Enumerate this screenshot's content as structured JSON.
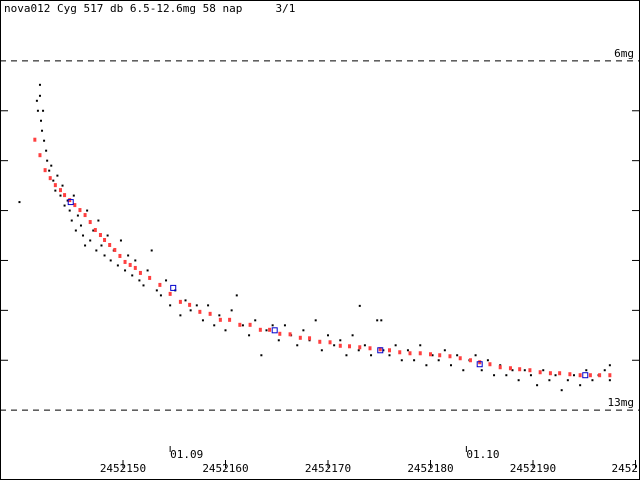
{
  "chart_data": {
    "type": "scatter",
    "title": "nova012 Cyg 517 db 6.5-12.6mg 58 nap     3/1",
    "y_inverted": true,
    "xlim": [
      2452138.0,
      2452200.44
    ],
    "ylim": [
      4.78,
      14.4
    ],
    "xticks": [
      2452150,
      2452160,
      2452170,
      2452180,
      2452190,
      {
        "value": 2452200,
        "label": "2452"
      }
    ],
    "yticks": [
      {
        "value": 6,
        "label": "6mg"
      },
      {
        "value": 13,
        "label": "13mg"
      }
    ],
    "yticks_minor": [
      7,
      8,
      9,
      10,
      11,
      12
    ],
    "date_marks": [
      {
        "value": 2452154.6,
        "label": "01.09"
      },
      {
        "value": 2452183.5,
        "label": "01.10"
      }
    ],
    "series": [
      {
        "marker": "dot",
        "color": "#000000",
        "x": [
          2452139.9,
          2452141.6,
          2452141.7,
          2452141.9,
          2452141.9,
          2452142.0,
          2452142.1,
          2452142.2,
          2452142.3,
          2452142.5,
          2452142.6,
          2452142.8,
          2452143.0,
          2452143.2,
          2452143.4,
          2452143.6,
          2452143.9,
          2452144.1,
          2452144.3,
          2452144.6,
          2452144.8,
          2452145.0,
          2452145.2,
          2452145.4,
          2452145.6,
          2452145.9,
          2452146.1,
          2452146.3,
          2452146.5,
          2452146.8,
          2452147.1,
          2452147.4,
          2452147.6,
          2452147.9,
          2452148.2,
          2452148.5,
          2452148.8,
          2452149.1,
          2452149.5,
          2452149.8,
          2452150.2,
          2452150.5,
          2452150.9,
          2452151.2,
          2452151.6,
          2452152.0,
          2452152.4,
          2452152.8,
          2452153.3,
          2452153.7,
          2452154.2,
          2452154.6,
          2452155.1,
          2452155.6,
          2452156.1,
          2452156.6,
          2452157.2,
          2452157.8,
          2452158.3,
          2452158.9,
          2452159.4,
          2452160.0,
          2452160.6,
          2452161.1,
          2452161.7,
          2452162.3,
          2452162.9,
          2452163.5,
          2452164.0,
          2452164.6,
          2452165.2,
          2452165.8,
          2452166.4,
          2452167.0,
          2452167.6,
          2452168.2,
          2452168.8,
          2452169.4,
          2452170.0,
          2452170.6,
          2452171.2,
          2452171.8,
          2452172.4,
          2452173.0,
          2452173.1,
          2452173.6,
          2452174.2,
          2452174.8,
          2452175.2,
          2452175.4,
          2452176.0,
          2452176.6,
          2452177.2,
          2452177.8,
          2452178.4,
          2452179.0,
          2452179.6,
          2452180.2,
          2452180.8,
          2452181.4,
          2452182.0,
          2452182.6,
          2452183.2,
          2452183.8,
          2452184.4,
          2452185.0,
          2452185.6,
          2452186.2,
          2452186.8,
          2452187.4,
          2452188.0,
          2452188.6,
          2452189.2,
          2452189.8,
          2452190.4,
          2452191.0,
          2452191.6,
          2452192.2,
          2452192.8,
          2452193.4,
          2452194.0,
          2452194.6,
          2452195.2,
          2452195.8,
          2452196.4,
          2452197.0,
          2452197.5,
          2452197.5
        ],
        "values": [
          8.83,
          6.8,
          7.0,
          6.48,
          6.7,
          7.2,
          7.4,
          7.0,
          7.6,
          7.8,
          8.0,
          8.2,
          8.1,
          8.4,
          8.6,
          8.3,
          8.7,
          8.5,
          8.9,
          8.8,
          9.0,
          9.2,
          8.7,
          9.4,
          9.1,
          9.3,
          9.5,
          9.7,
          9.0,
          9.6,
          9.4,
          9.8,
          9.2,
          9.7,
          9.9,
          9.5,
          10.0,
          9.8,
          10.1,
          9.6,
          10.2,
          9.9,
          10.3,
          10.0,
          10.4,
          10.5,
          10.2,
          9.8,
          10.6,
          10.7,
          10.4,
          10.9,
          10.6,
          11.1,
          10.8,
          11.0,
          10.9,
          11.2,
          10.9,
          11.3,
          11.1,
          11.4,
          11.0,
          10.7,
          11.3,
          11.5,
          11.2,
          11.9,
          11.4,
          11.3,
          11.6,
          11.3,
          11.5,
          11.7,
          11.4,
          11.6,
          11.2,
          11.8,
          11.5,
          11.7,
          11.6,
          11.9,
          11.5,
          11.8,
          10.91,
          11.7,
          11.9,
          11.2,
          11.2,
          11.8,
          11.9,
          11.7,
          12.0,
          11.8,
          12.0,
          11.7,
          12.1,
          11.9,
          12.0,
          11.8,
          12.1,
          11.9,
          12.2,
          12.0,
          11.9,
          12.2,
          12.0,
          12.3,
          12.1,
          12.3,
          12.2,
          12.4,
          12.2,
          12.3,
          12.5,
          12.2,
          12.4,
          12.3,
          12.6,
          12.4,
          12.3,
          12.5,
          12.2,
          12.4,
          12.3,
          12.2,
          12.4,
          12.1
        ]
      },
      {
        "marker": "rect",
        "color": "#ff4040",
        "x": [
          2452141.4,
          2452141.9,
          2452142.4,
          2452142.9,
          2452143.4,
          2452143.9,
          2452144.3,
          2452144.8,
          2452145.3,
          2452145.8,
          2452146.3,
          2452146.8,
          2452147.3,
          2452147.8,
          2452148.2,
          2452148.7,
          2452149.2,
          2452149.7,
          2452150.2,
          2452150.7,
          2452151.2,
          2452151.7,
          2452152.6,
          2452153.6,
          2452154.6,
          2452155.6,
          2452156.5,
          2452157.5,
          2452158.5,
          2452159.5,
          2452160.4,
          2452161.4,
          2452162.4,
          2452163.4,
          2452164.3,
          2452165.3,
          2452166.3,
          2452167.3,
          2452168.2,
          2452169.2,
          2452170.2,
          2452171.2,
          2452172.1,
          2452173.1,
          2452174.1,
          2452175.1,
          2452176.0,
          2452177.0,
          2452178.0,
          2452179.0,
          2452180.0,
          2452180.9,
          2452181.9,
          2452182.9,
          2452183.9,
          2452184.8,
          2452185.8,
          2452186.8,
          2452187.8,
          2452188.7,
          2452189.7,
          2452190.7,
          2452191.7,
          2452192.6,
          2452193.6,
          2452194.6,
          2452195.6,
          2452196.5,
          2452197.5
        ],
        "values": [
          7.58,
          7.89,
          8.19,
          8.35,
          8.49,
          8.59,
          8.69,
          8.79,
          8.89,
          8.99,
          9.09,
          9.23,
          9.39,
          9.49,
          9.59,
          9.69,
          9.79,
          9.91,
          10.03,
          10.09,
          10.15,
          10.25,
          10.35,
          10.49,
          10.67,
          10.83,
          10.89,
          11.03,
          11.07,
          11.19,
          11.19,
          11.29,
          11.29,
          11.39,
          11.39,
          11.47,
          11.48,
          11.55,
          11.56,
          11.63,
          11.64,
          11.71,
          11.72,
          11.74,
          11.76,
          11.78,
          11.8,
          11.84,
          11.86,
          11.86,
          11.88,
          11.9,
          11.92,
          11.96,
          12.0,
          12.04,
          12.08,
          12.14,
          12.16,
          12.18,
          12.2,
          12.24,
          12.26,
          12.26,
          12.28,
          12.3,
          12.3,
          12.3,
          12.3
        ]
      },
      {
        "marker": "square",
        "color": "#0000cc",
        "x": [
          2452144.9,
          2452154.9,
          2452164.8,
          2452175.1,
          2452184.8,
          2452195.1
        ],
        "values": [
          8.83,
          10.55,
          11.4,
          11.8,
          12.08,
          12.3
        ]
      }
    ]
  }
}
